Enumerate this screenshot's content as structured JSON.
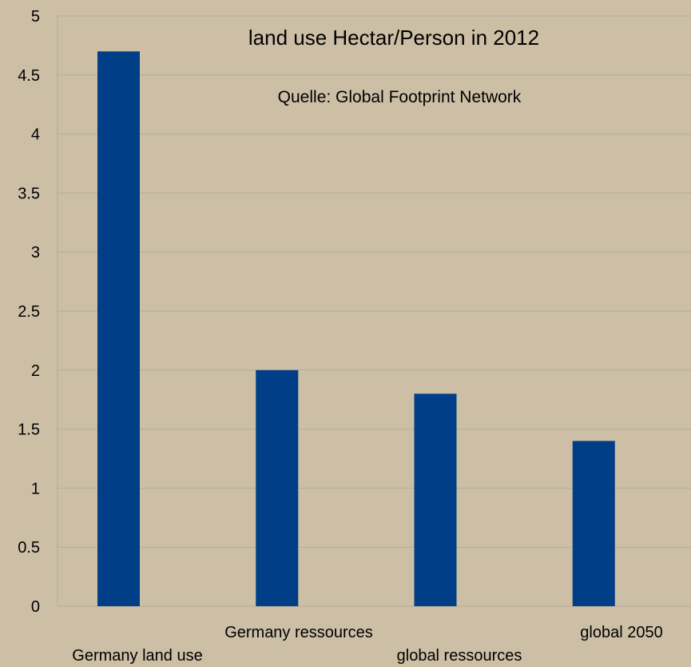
{
  "chart_data": {
    "type": "bar",
    "title": "land use Hectar/Person in 2012",
    "subtitle": "Quelle: Global Footprint Network",
    "categories": [
      "Germany land use",
      "Germany ressources",
      "global ressources",
      "global 2050"
    ],
    "values": [
      4.7,
      2.0,
      1.8,
      1.4
    ],
    "yticks": [
      "0",
      "0.5",
      "1",
      "1.5",
      "2",
      "2.5",
      "3",
      "3.5",
      "4",
      "4.5",
      "5"
    ],
    "ylim": [
      0,
      5
    ],
    "grid": true,
    "legend": "none",
    "colors": {
      "bar": "#003f87",
      "grid": "#b5ab9a",
      "background": "#cdbfa6"
    }
  }
}
